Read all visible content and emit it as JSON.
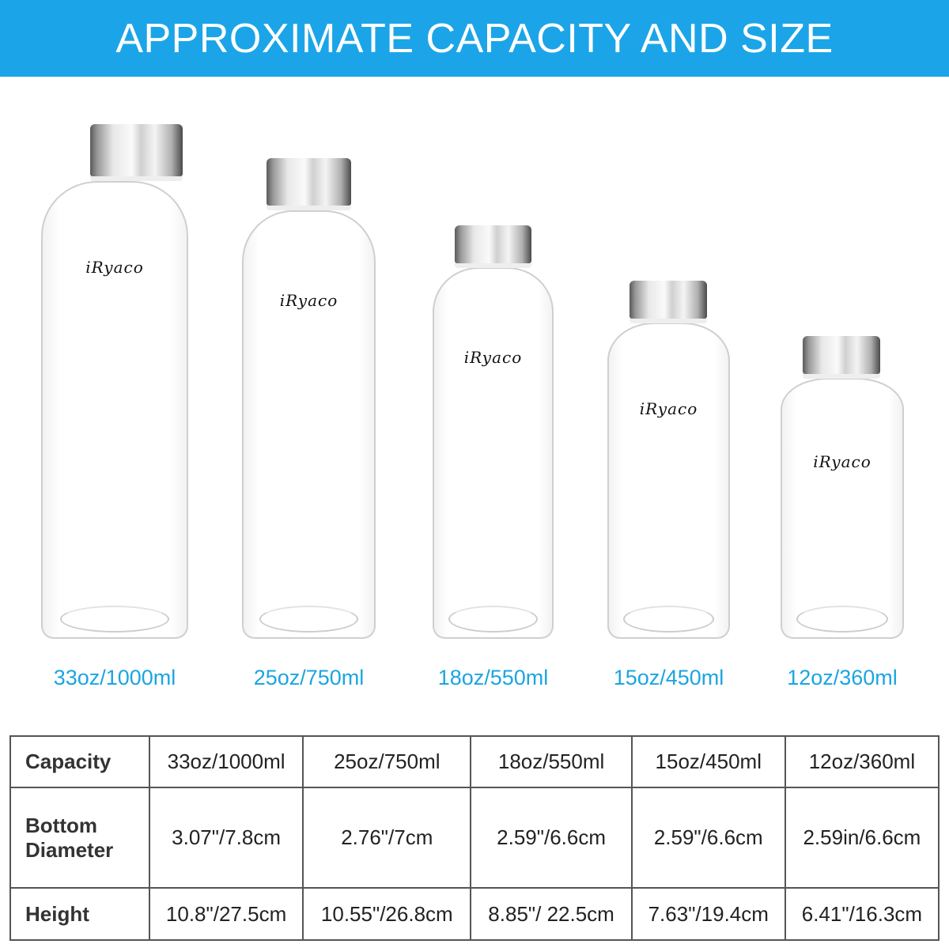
{
  "header": {
    "title": "APPROXIMATE CAPACITY AND SIZE",
    "background": "#1ba5e8"
  },
  "accent_color": "#1ba5e0",
  "brand_logo": "iRyaco",
  "bottles": [
    {
      "label": "33oz/1000ml"
    },
    {
      "label": "25oz/750ml"
    },
    {
      "label": "18oz/550ml"
    },
    {
      "label": "15oz/450ml"
    },
    {
      "label": "12oz/360ml"
    }
  ],
  "table": {
    "rows": [
      {
        "header": "Capacity",
        "cells": [
          "33oz/1000ml",
          "25oz/750ml",
          "18oz/550ml",
          "15oz/450ml",
          "12oz/360ml"
        ]
      },
      {
        "header_line1": "Bottom",
        "header_line2": "Diameter",
        "cells": [
          "3.07\"/7.8cm",
          "2.76\"/7cm",
          "2.59\"/6.6cm",
          "2.59\"/6.6cm",
          "2.59in/6.6cm"
        ]
      },
      {
        "header": "Height",
        "cells": [
          "10.8\"/27.5cm",
          "10.55\"/26.8cm",
          "8.85\"/ 22.5cm",
          "7.63\"/19.4cm",
          "6.41\"/16.3cm"
        ]
      }
    ]
  }
}
